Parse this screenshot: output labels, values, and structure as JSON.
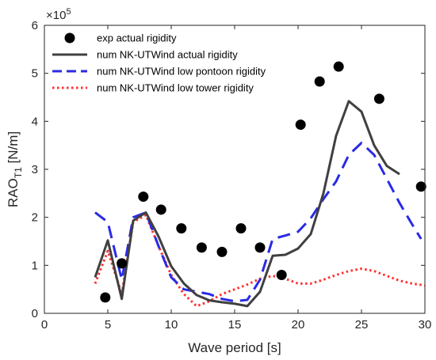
{
  "chart_data": {
    "type": "line",
    "xlabel": "Wave period [s]",
    "ylabel": "RAO",
    "ylabel_sub": "T1",
    "ylabel_unit": " [N/m]",
    "exponent_text": "×10",
    "exponent_power": "5",
    "xlim": [
      0,
      30
    ],
    "ylim": [
      0,
      6
    ],
    "x_ticks": [
      "0",
      "5",
      "10",
      "15",
      "20",
      "25",
      "30"
    ],
    "y_ticks": [
      "0",
      "1",
      "2",
      "3",
      "4",
      "5",
      "6"
    ],
    "legend_position": "top-left",
    "series": [
      {
        "name": "exp actual rigidity",
        "style": "markers",
        "color": "#000000",
        "x": [
          4.8,
          6.1,
          7.8,
          9.2,
          10.8,
          12.4,
          14.0,
          15.5,
          17.0,
          18.7,
          20.2,
          21.7,
          23.2,
          26.4,
          29.7
        ],
        "y": [
          0.33,
          1.04,
          2.43,
          2.16,
          1.77,
          1.37,
          1.28,
          1.77,
          1.37,
          0.8,
          3.93,
          4.83,
          5.14,
          4.47,
          2.64
        ]
      },
      {
        "name": "num NK-UTWind actual rigidity",
        "style": "solid",
        "color": "#404040",
        "x": [
          4.0,
          5.0,
          6.1,
          7.0,
          8.0,
          9.0,
          10.0,
          11.0,
          12.0,
          13.0,
          14.0,
          15.0,
          16.0,
          17.0,
          18.0,
          19.0,
          20.0,
          21.0,
          22.0,
          23.0,
          24.0,
          25.0,
          26.0,
          27.0,
          28.0
        ],
        "y": [
          0.75,
          1.52,
          0.3,
          1.93,
          2.1,
          1.6,
          0.98,
          0.62,
          0.38,
          0.27,
          0.23,
          0.2,
          0.15,
          0.45,
          1.2,
          1.22,
          1.35,
          1.65,
          2.5,
          3.7,
          4.42,
          4.2,
          3.5,
          3.07,
          2.9
        ]
      },
      {
        "name": "num NK-UTWind low pontoon rigidity",
        "style": "dashed",
        "color": "#2a2ae6",
        "x": [
          4.0,
          5.0,
          6.1,
          7.0,
          8.0,
          9.0,
          10.0,
          11.0,
          12.0,
          13.0,
          14.0,
          15.0,
          16.0,
          17.0,
          18.0,
          19.0,
          20.0,
          21.0,
          22.0,
          23.0,
          24.0,
          25.0,
          26.0,
          27.0,
          28.0,
          29.0,
          29.7
        ],
        "y": [
          2.1,
          1.9,
          0.7,
          2.0,
          2.1,
          1.4,
          0.75,
          0.5,
          0.45,
          0.4,
          0.3,
          0.25,
          0.28,
          0.7,
          1.55,
          1.62,
          1.7,
          1.98,
          2.38,
          2.75,
          3.3,
          3.55,
          3.3,
          2.8,
          2.3,
          1.85,
          1.55
        ]
      },
      {
        "name": "num NK-UTWind low tower rigidity",
        "style": "dotted",
        "color": "#ff3030",
        "x": [
          4.0,
          5.0,
          6.1,
          7.0,
          8.0,
          9.0,
          10.0,
          11.0,
          12.0,
          13.0,
          14.0,
          15.0,
          16.0,
          17.0,
          18.0,
          19.0,
          20.0,
          21.0,
          22.0,
          23.0,
          24.0,
          25.0,
          26.0,
          27.0,
          28.0,
          29.0,
          30.0
        ],
        "y": [
          0.62,
          1.3,
          0.4,
          1.9,
          2.05,
          1.4,
          0.8,
          0.4,
          0.15,
          0.25,
          0.4,
          0.5,
          0.6,
          0.72,
          0.78,
          0.72,
          0.62,
          0.62,
          0.7,
          0.8,
          0.88,
          0.93,
          0.88,
          0.78,
          0.68,
          0.62,
          0.58
        ]
      }
    ]
  }
}
